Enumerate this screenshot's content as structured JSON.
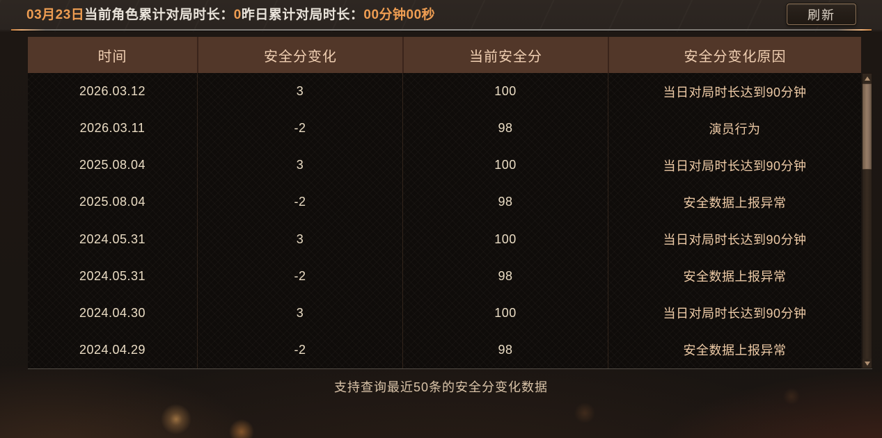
{
  "topbar": {
    "segments": [
      {
        "text": "03月23日"
      },
      {
        "text": "当前角色累计对局时长："
      },
      {
        "text": "0"
      },
      {
        "text": "昨日累计对局时长："
      },
      {
        "text": "00分钟00秒"
      }
    ],
    "refresh_label": "刷新"
  },
  "table": {
    "columns": [
      "时间",
      "安全分变化",
      "当前安全分",
      "安全分变化原因"
    ],
    "rows": [
      {
        "time": "2026.03.12",
        "change": "3",
        "score": "100",
        "reason": "当日对局时长达到90分钟"
      },
      {
        "time": "2026.03.11",
        "change": "-2",
        "score": "98",
        "reason": "演员行为"
      },
      {
        "time": "2025.08.04",
        "change": "3",
        "score": "100",
        "reason": "当日对局时长达到90分钟"
      },
      {
        "time": "2025.08.04",
        "change": "-2",
        "score": "98",
        "reason": "安全数据上报异常"
      },
      {
        "time": "2024.05.31",
        "change": "3",
        "score": "100",
        "reason": "当日对局时长达到90分钟"
      },
      {
        "time": "2024.05.31",
        "change": "-2",
        "score": "98",
        "reason": "安全数据上报异常"
      },
      {
        "time": "2024.04.30",
        "change": "3",
        "score": "100",
        "reason": "当日对局时长达到90分钟"
      },
      {
        "time": "2024.04.29",
        "change": "-2",
        "score": "98",
        "reason": "安全数据上报异常"
      }
    ]
  },
  "footer": {
    "note": "支持查询最近50条的安全分变化数据"
  },
  "colors": {
    "accent_orange": "#ee9d52",
    "header_bg": "#523729",
    "header_text": "#f0cfb2",
    "cell_text": "#eadcc4",
    "reason_text": "#edcaa6",
    "scroll_thumb": "#8a7160"
  }
}
